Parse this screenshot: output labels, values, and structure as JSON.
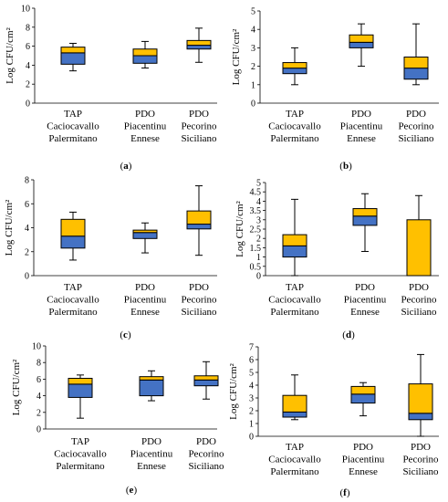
{
  "colors": {
    "upper_box": "#FFC000",
    "lower_box": "#4472C4",
    "stroke": "#000000"
  },
  "chart_data": [
    {
      "type": "boxplot",
      "panel": "(a)",
      "panel_letter": "a",
      "ylabel": "Log CFU/cm²",
      "ylim": [
        0,
        10
      ],
      "yticks": [
        0,
        2,
        4,
        6,
        8,
        10
      ],
      "categories": [
        [
          "TAP",
          "Caciocavallo",
          "Palermitano"
        ],
        [
          "PDO",
          "Piacentinu",
          "Ennese"
        ],
        [
          "PDO",
          "Pecorino",
          "Siciliano"
        ]
      ],
      "boxes": [
        {
          "min": 3.4,
          "q1": 4.1,
          "median": 5.3,
          "q3": 5.9,
          "max": 6.3
        },
        {
          "min": 3.7,
          "q1": 4.2,
          "median": 5.0,
          "q3": 5.7,
          "max": 6.5
        },
        {
          "min": 4.3,
          "q1": 5.7,
          "median": 6.1,
          "q3": 6.6,
          "max": 7.9
        }
      ]
    },
    {
      "type": "boxplot",
      "panel": "(b)",
      "panel_letter": "b",
      "ylabel": "Log CFU/cm²",
      "ylim": [
        0,
        5
      ],
      "yticks": [
        0,
        1,
        2,
        3,
        4,
        5
      ],
      "categories": [
        [
          "TAP",
          "Caciocavallo",
          "Palermitano"
        ],
        [
          "PDO",
          "Piacentinu",
          "Ennese"
        ],
        [
          "PDO",
          "Pecorino",
          "Siciliano"
        ]
      ],
      "boxes": [
        {
          "min": 1.0,
          "q1": 1.6,
          "median": 1.9,
          "q3": 2.2,
          "max": 3.0
        },
        {
          "min": 2.0,
          "q1": 3.0,
          "median": 3.3,
          "q3": 3.7,
          "max": 4.3
        },
        {
          "min": 1.0,
          "q1": 1.3,
          "median": 1.9,
          "q3": 2.5,
          "max": 4.3
        }
      ]
    },
    {
      "type": "boxplot",
      "panel": "(c)",
      "panel_letter": "c",
      "ylabel": "Log CFU/cm²",
      "ylim": [
        0,
        8
      ],
      "yticks": [
        0,
        2,
        4,
        6,
        8
      ],
      "categories": [
        [
          "TAP",
          "Caciocavallo",
          "Palermitano"
        ],
        [
          "PDO",
          "Piacentinu",
          "Ennese"
        ],
        [
          "PDO",
          "Pecorino",
          "Siciliano"
        ]
      ],
      "boxes": [
        {
          "min": 1.3,
          "q1": 2.3,
          "median": 3.3,
          "q3": 4.7,
          "max": 5.3
        },
        {
          "min": 1.9,
          "q1": 3.1,
          "median": 3.6,
          "q3": 3.8,
          "max": 4.4
        },
        {
          "min": 1.7,
          "q1": 3.9,
          "median": 4.3,
          "q3": 5.4,
          "max": 7.5
        }
      ]
    },
    {
      "type": "boxplot",
      "panel": "(d)",
      "panel_letter": "d",
      "ylabel": "Log CFU/cm²",
      "ylim": [
        0,
        5
      ],
      "yticks": [
        0,
        0.5,
        1,
        1.5,
        2,
        2.5,
        3,
        3.5,
        4,
        4.5,
        5
      ],
      "categories": [
        [
          "TAP",
          "Caciocavallo",
          "Palermitano"
        ],
        [
          "PDO",
          "Piacentinu",
          "Ennese"
        ],
        [
          "PDO",
          "Pecorino",
          "Siciliano"
        ]
      ],
      "boxes": [
        {
          "min": 0.0,
          "q1": 1.0,
          "median": 1.6,
          "q3": 2.2,
          "max": 4.1
        },
        {
          "min": 1.3,
          "q1": 2.7,
          "median": 3.2,
          "q3": 3.6,
          "max": 4.4
        },
        {
          "min": 0.0,
          "q1": 0.0,
          "median": 0.0,
          "q3": 3.0,
          "max": 4.3
        }
      ]
    },
    {
      "type": "boxplot",
      "panel": "(e)",
      "panel_letter": "e",
      "ylabel": "Log CFU/cm²",
      "ylim": [
        0,
        10
      ],
      "yticks": [
        0,
        2,
        4,
        6,
        8,
        10
      ],
      "categories": [
        [
          "TAP",
          "Caciocavallo",
          "Palermitano"
        ],
        [
          "PDO",
          "Piacentinu",
          "Ennese"
        ],
        [
          "PDO",
          "Pecorino",
          "Siciliano"
        ]
      ],
      "boxes": [
        {
          "min": 1.3,
          "q1": 3.8,
          "median": 5.4,
          "q3": 6.1,
          "max": 6.5
        },
        {
          "min": 3.4,
          "q1": 4.0,
          "median": 5.9,
          "q3": 6.3,
          "max": 7.0
        },
        {
          "min": 3.6,
          "q1": 5.2,
          "median": 5.9,
          "q3": 6.4,
          "max": 8.1
        }
      ]
    },
    {
      "type": "boxplot",
      "panel": "(f)",
      "panel_letter": "f",
      "ylabel": "Log CFU/cm²",
      "ylim": [
        0,
        7
      ],
      "yticks": [
        0,
        1,
        2,
        3,
        4,
        5,
        6,
        7
      ],
      "categories": [
        [
          "TAP",
          "Caciocavallo",
          "Palermitano"
        ],
        [
          "PDO",
          "Piacentinu",
          "Ennese"
        ],
        [
          "PDO",
          "Pecorino",
          "Siciliano"
        ]
      ],
      "boxes": [
        {
          "min": 1.3,
          "q1": 1.5,
          "median": 1.9,
          "q3": 3.2,
          "max": 4.8
        },
        {
          "min": 1.6,
          "q1": 2.6,
          "median": 3.3,
          "q3": 3.9,
          "max": 4.2
        },
        {
          "min": 0.0,
          "q1": 1.3,
          "median": 1.8,
          "q3": 4.1,
          "max": 6.4
        }
      ]
    }
  ]
}
